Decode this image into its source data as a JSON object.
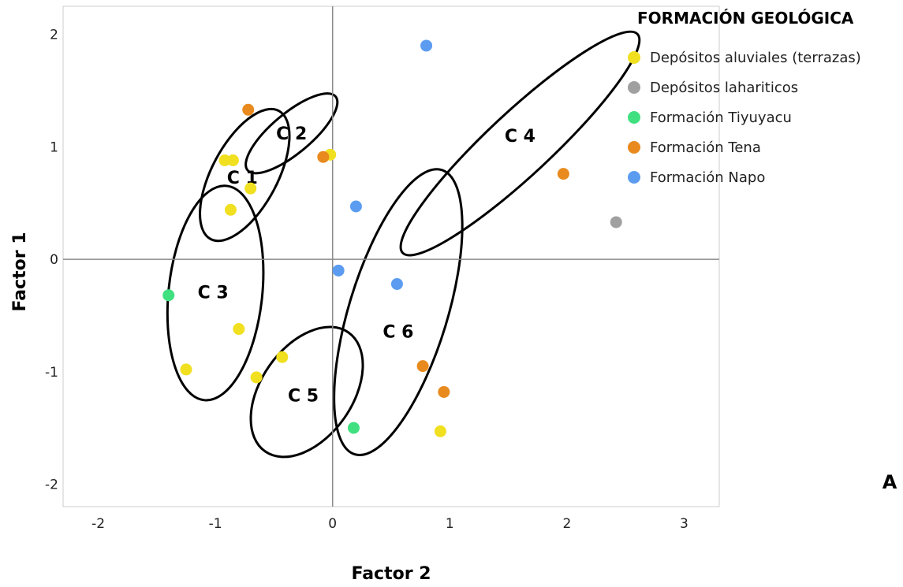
{
  "chart_data": {
    "type": "scatter",
    "xlabel": "Factor 2",
    "ylabel": "Factor 1",
    "xlim": [
      -2.3,
      3.3
    ],
    "ylim": [
      -2.2,
      2.25
    ],
    "xticks": [
      -2,
      -1,
      0,
      1,
      2,
      3
    ],
    "yticks": [
      -2,
      -1,
      0,
      1,
      2
    ],
    "xtick_labels": [
      "-2",
      "-1",
      "0",
      "1",
      "2",
      "3"
    ],
    "ytick_labels": [
      "-2",
      "-1",
      "0",
      "1",
      "2"
    ],
    "reference_lines": {
      "x": 0,
      "y": 0
    },
    "legend_title": "FORMACIÓN GEOLÓGICA",
    "legend_placement": "top-right",
    "panel_label": "A",
    "series": [
      {
        "name": "Depósitos aluviales (terrazas)",
        "color": "#f0e020",
        "points": [
          [
            -0.92,
            0.88
          ],
          [
            -0.85,
            0.88
          ],
          [
            -0.7,
            0.63
          ],
          [
            -0.87,
            0.44
          ],
          [
            -0.8,
            -0.62
          ],
          [
            -1.25,
            -0.98
          ],
          [
            -0.43,
            -0.87
          ],
          [
            -0.65,
            -1.05
          ],
          [
            0.92,
            -1.53
          ],
          [
            -0.02,
            0.93
          ]
        ]
      },
      {
        "name": "Depósitos lahariticos",
        "color": "#a0a0a0",
        "points": [
          [
            2.42,
            0.33
          ]
        ]
      },
      {
        "name": "Formación Tiyuyacu",
        "color": "#40e080",
        "points": [
          [
            -1.4,
            -0.32
          ],
          [
            0.18,
            -1.5
          ]
        ]
      },
      {
        "name": "Formación Tena",
        "color": "#e88a1e",
        "points": [
          [
            -0.72,
            1.33
          ],
          [
            -0.08,
            0.91
          ],
          [
            1.97,
            0.76
          ],
          [
            0.77,
            -0.95
          ],
          [
            0.95,
            -1.18
          ]
        ]
      },
      {
        "name": "Formación Napo",
        "color": "#5b9cf0",
        "points": [
          [
            0.8,
            1.9
          ],
          [
            0.2,
            0.47
          ],
          [
            0.05,
            -0.1
          ],
          [
            0.55,
            -0.22
          ]
        ]
      }
    ],
    "clusters": [
      {
        "label": "C 1",
        "cx": -0.75,
        "cy": 0.75,
        "rx": 0.62,
        "ry": 0.28,
        "angle": 62,
        "label_at": [
          -0.77,
          0.73
        ]
      },
      {
        "label": "C 2",
        "cx": -0.35,
        "cy": 1.12,
        "rx": 0.49,
        "ry": 0.17,
        "angle": 40,
        "label_at": [
          -0.35,
          1.12
        ]
      },
      {
        "label": "C 3",
        "cx": -1.0,
        "cy": -0.3,
        "rx": 0.92,
        "ry": 0.4,
        "angle": 84,
        "label_at": [
          -1.02,
          -0.29
        ]
      },
      {
        "label": "C 4",
        "cx": 1.6,
        "cy": 1.03,
        "rx": 1.37,
        "ry": 0.27,
        "angle": 43,
        "label_at": [
          1.6,
          1.1
        ]
      },
      {
        "label": "C 5",
        "cx": -0.22,
        "cy": -1.18,
        "rx": 0.62,
        "ry": 0.39,
        "angle": 55,
        "label_at": [
          -0.25,
          -1.21
        ]
      },
      {
        "label": "C 6",
        "cx": 0.56,
        "cy": -0.47,
        "rx": 1.27,
        "ry": 0.42,
        "angle": 73,
        "label_at": [
          0.56,
          -0.64
        ]
      }
    ]
  }
}
